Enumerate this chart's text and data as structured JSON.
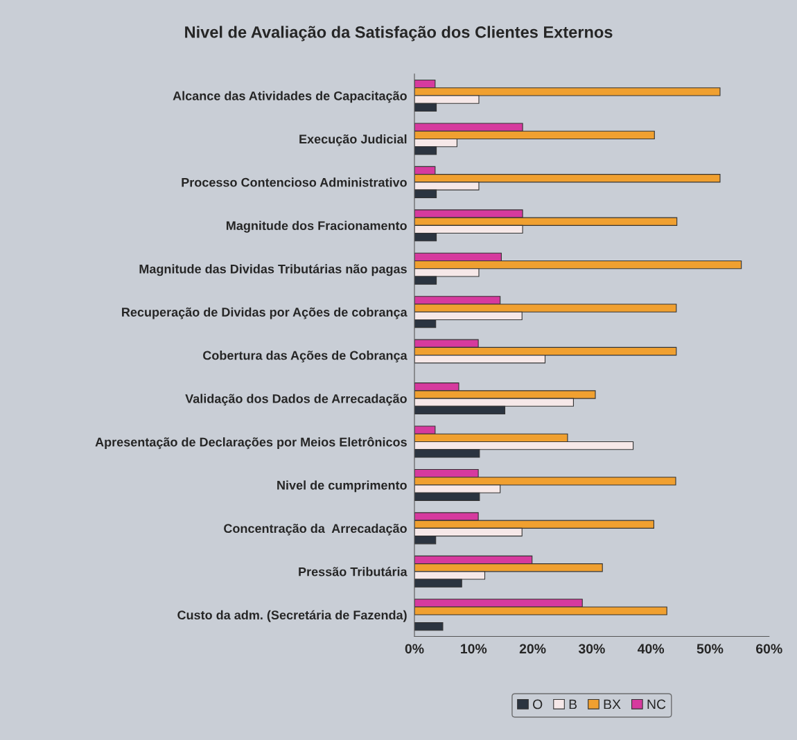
{
  "chart_data": {
    "type": "bar",
    "orientation": "horizontal",
    "title": "Nivel de Avaliação da Satisfação dos Clientes Externos",
    "categories": [
      "Alcance das Atividades de Capacitação",
      "Execução Judicial",
      "Processo Contencioso Administrativo",
      "Magnitude dos Fracionamento",
      "Magnitude das Dividas Tributárias não pagas",
      "Recuperação de Dividas por Ações de cobrança",
      "Cobertura das Ações de Cobrança",
      "Validação dos Dados de Arrecadação",
      "Apresentação de Declarações por Meios Eletrônicos",
      "Nivel de cumprimento",
      "Concentração da  Arrecadação",
      "Pressão Tributária",
      "Custo da adm. (Secretária de Fazenda)"
    ],
    "series": [
      {
        "name": "NC",
        "color": "#d63a9e",
        "values": [
          3.5,
          18.3,
          3.5,
          18.3,
          14.7,
          14.5,
          10.8,
          7.5,
          3.5,
          10.8,
          10.8,
          19.9,
          28.4
        ]
      },
      {
        "name": "BX",
        "color": "#f0a030",
        "values": [
          51.7,
          40.6,
          51.7,
          44.4,
          55.3,
          44.3,
          44.3,
          30.6,
          25.9,
          44.2,
          40.5,
          31.8,
          42.7
        ]
      },
      {
        "name": "B",
        "color": "#f6e8e8",
        "values": [
          10.9,
          7.2,
          10.9,
          18.3,
          10.9,
          18.2,
          22.1,
          26.9,
          37.0,
          14.5,
          18.2,
          11.9,
          null
        ]
      },
      {
        "name": "O",
        "color": "#2b3440",
        "values": [
          3.7,
          3.7,
          3.7,
          3.7,
          3.7,
          3.6,
          null,
          15.3,
          11.0,
          11.0,
          3.6,
          8.0,
          4.8
        ]
      }
    ],
    "xlim": [
      0,
      60
    ],
    "xticks": [
      {
        "value": 0,
        "label": "0%"
      },
      {
        "value": 10,
        "label": "10%"
      },
      {
        "value": 20,
        "label": "20%"
      },
      {
        "value": 30,
        "label": "30%"
      },
      {
        "value": 40,
        "label": "40%"
      },
      {
        "value": 50,
        "label": "50%"
      },
      {
        "value": 60,
        "label": "60%"
      }
    ],
    "grid": false,
    "legend": "bottom"
  }
}
